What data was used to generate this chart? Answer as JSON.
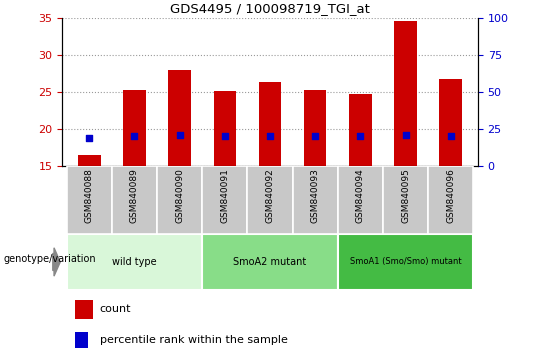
{
  "title": "GDS4495 / 100098719_TGI_at",
  "samples": [
    "GSM840088",
    "GSM840089",
    "GSM840090",
    "GSM840091",
    "GSM840092",
    "GSM840093",
    "GSM840094",
    "GSM840095",
    "GSM840096"
  ],
  "counts": [
    16.5,
    25.3,
    28.0,
    25.2,
    26.4,
    25.3,
    24.7,
    34.5,
    26.7
  ],
  "percentile_ranks": [
    19.0,
    20.5,
    20.8,
    20.5,
    20.5,
    20.1,
    20.1,
    21.3,
    20.7
  ],
  "ylim_left": [
    15,
    35
  ],
  "ylim_right": [
    0,
    100
  ],
  "yticks_left": [
    15,
    20,
    25,
    30,
    35
  ],
  "yticks_right": [
    0,
    25,
    50,
    75,
    100
  ],
  "bar_color": "#cc0000",
  "dot_color": "#0000cc",
  "bar_width": 0.5,
  "groups": [
    {
      "label": "wild type",
      "indices": [
        0,
        1,
        2
      ],
      "color": "#d9f7d9"
    },
    {
      "label": "SmoA2 mutant",
      "indices": [
        3,
        4,
        5
      ],
      "color": "#88dd88"
    },
    {
      "label": "SmoA1 (Smo/Smo) mutant",
      "indices": [
        6,
        7,
        8
      ],
      "color": "#44bb44"
    }
  ],
  "tick_color_left": "#cc0000",
  "tick_color_right": "#0000cc",
  "legend_count_label": "count",
  "legend_percentile_label": "percentile rank within the sample",
  "genotype_label": "genotype/variation"
}
